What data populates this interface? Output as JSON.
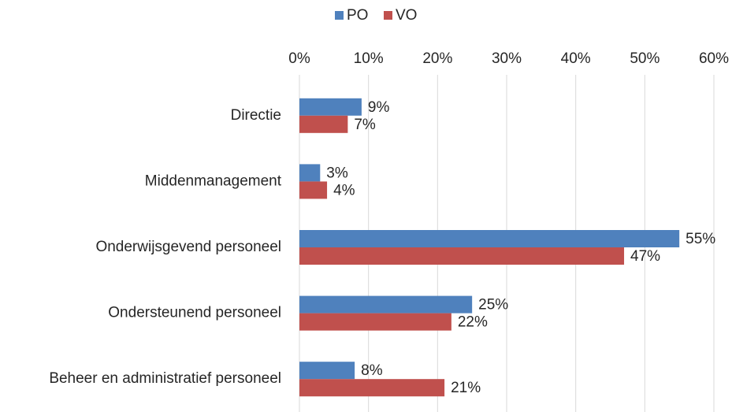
{
  "chart_data": {
    "type": "bar",
    "orientation": "horizontal",
    "legend": "top",
    "grid": true,
    "categories": [
      "Directie",
      "Middenmanagement",
      "Onderwijsgevend personeel",
      "Ondersteunend personeel",
      "Beheer en administratief personeel"
    ],
    "series": [
      {
        "name": "PO",
        "color": "#4f81bd",
        "values": [
          9,
          3,
          55,
          25,
          8
        ],
        "value_labels": [
          "9%",
          "3%",
          "55%",
          "25%",
          "8%"
        ]
      },
      {
        "name": "VO",
        "color": "#c0504d",
        "values": [
          7,
          4,
          47,
          22,
          21
        ],
        "value_labels": [
          "7%",
          "4%",
          "47%",
          "22%",
          "21%"
        ]
      }
    ],
    "xlim": [
      0,
      60
    ],
    "xticks": [
      {
        "value": 0,
        "label": "0%"
      },
      {
        "value": 10,
        "label": "10%"
      },
      {
        "value": 20,
        "label": "20%"
      },
      {
        "value": 30,
        "label": "30%"
      },
      {
        "value": 40,
        "label": "40%"
      },
      {
        "value": 50,
        "label": "50%"
      },
      {
        "value": 60,
        "label": "60%"
      }
    ]
  }
}
